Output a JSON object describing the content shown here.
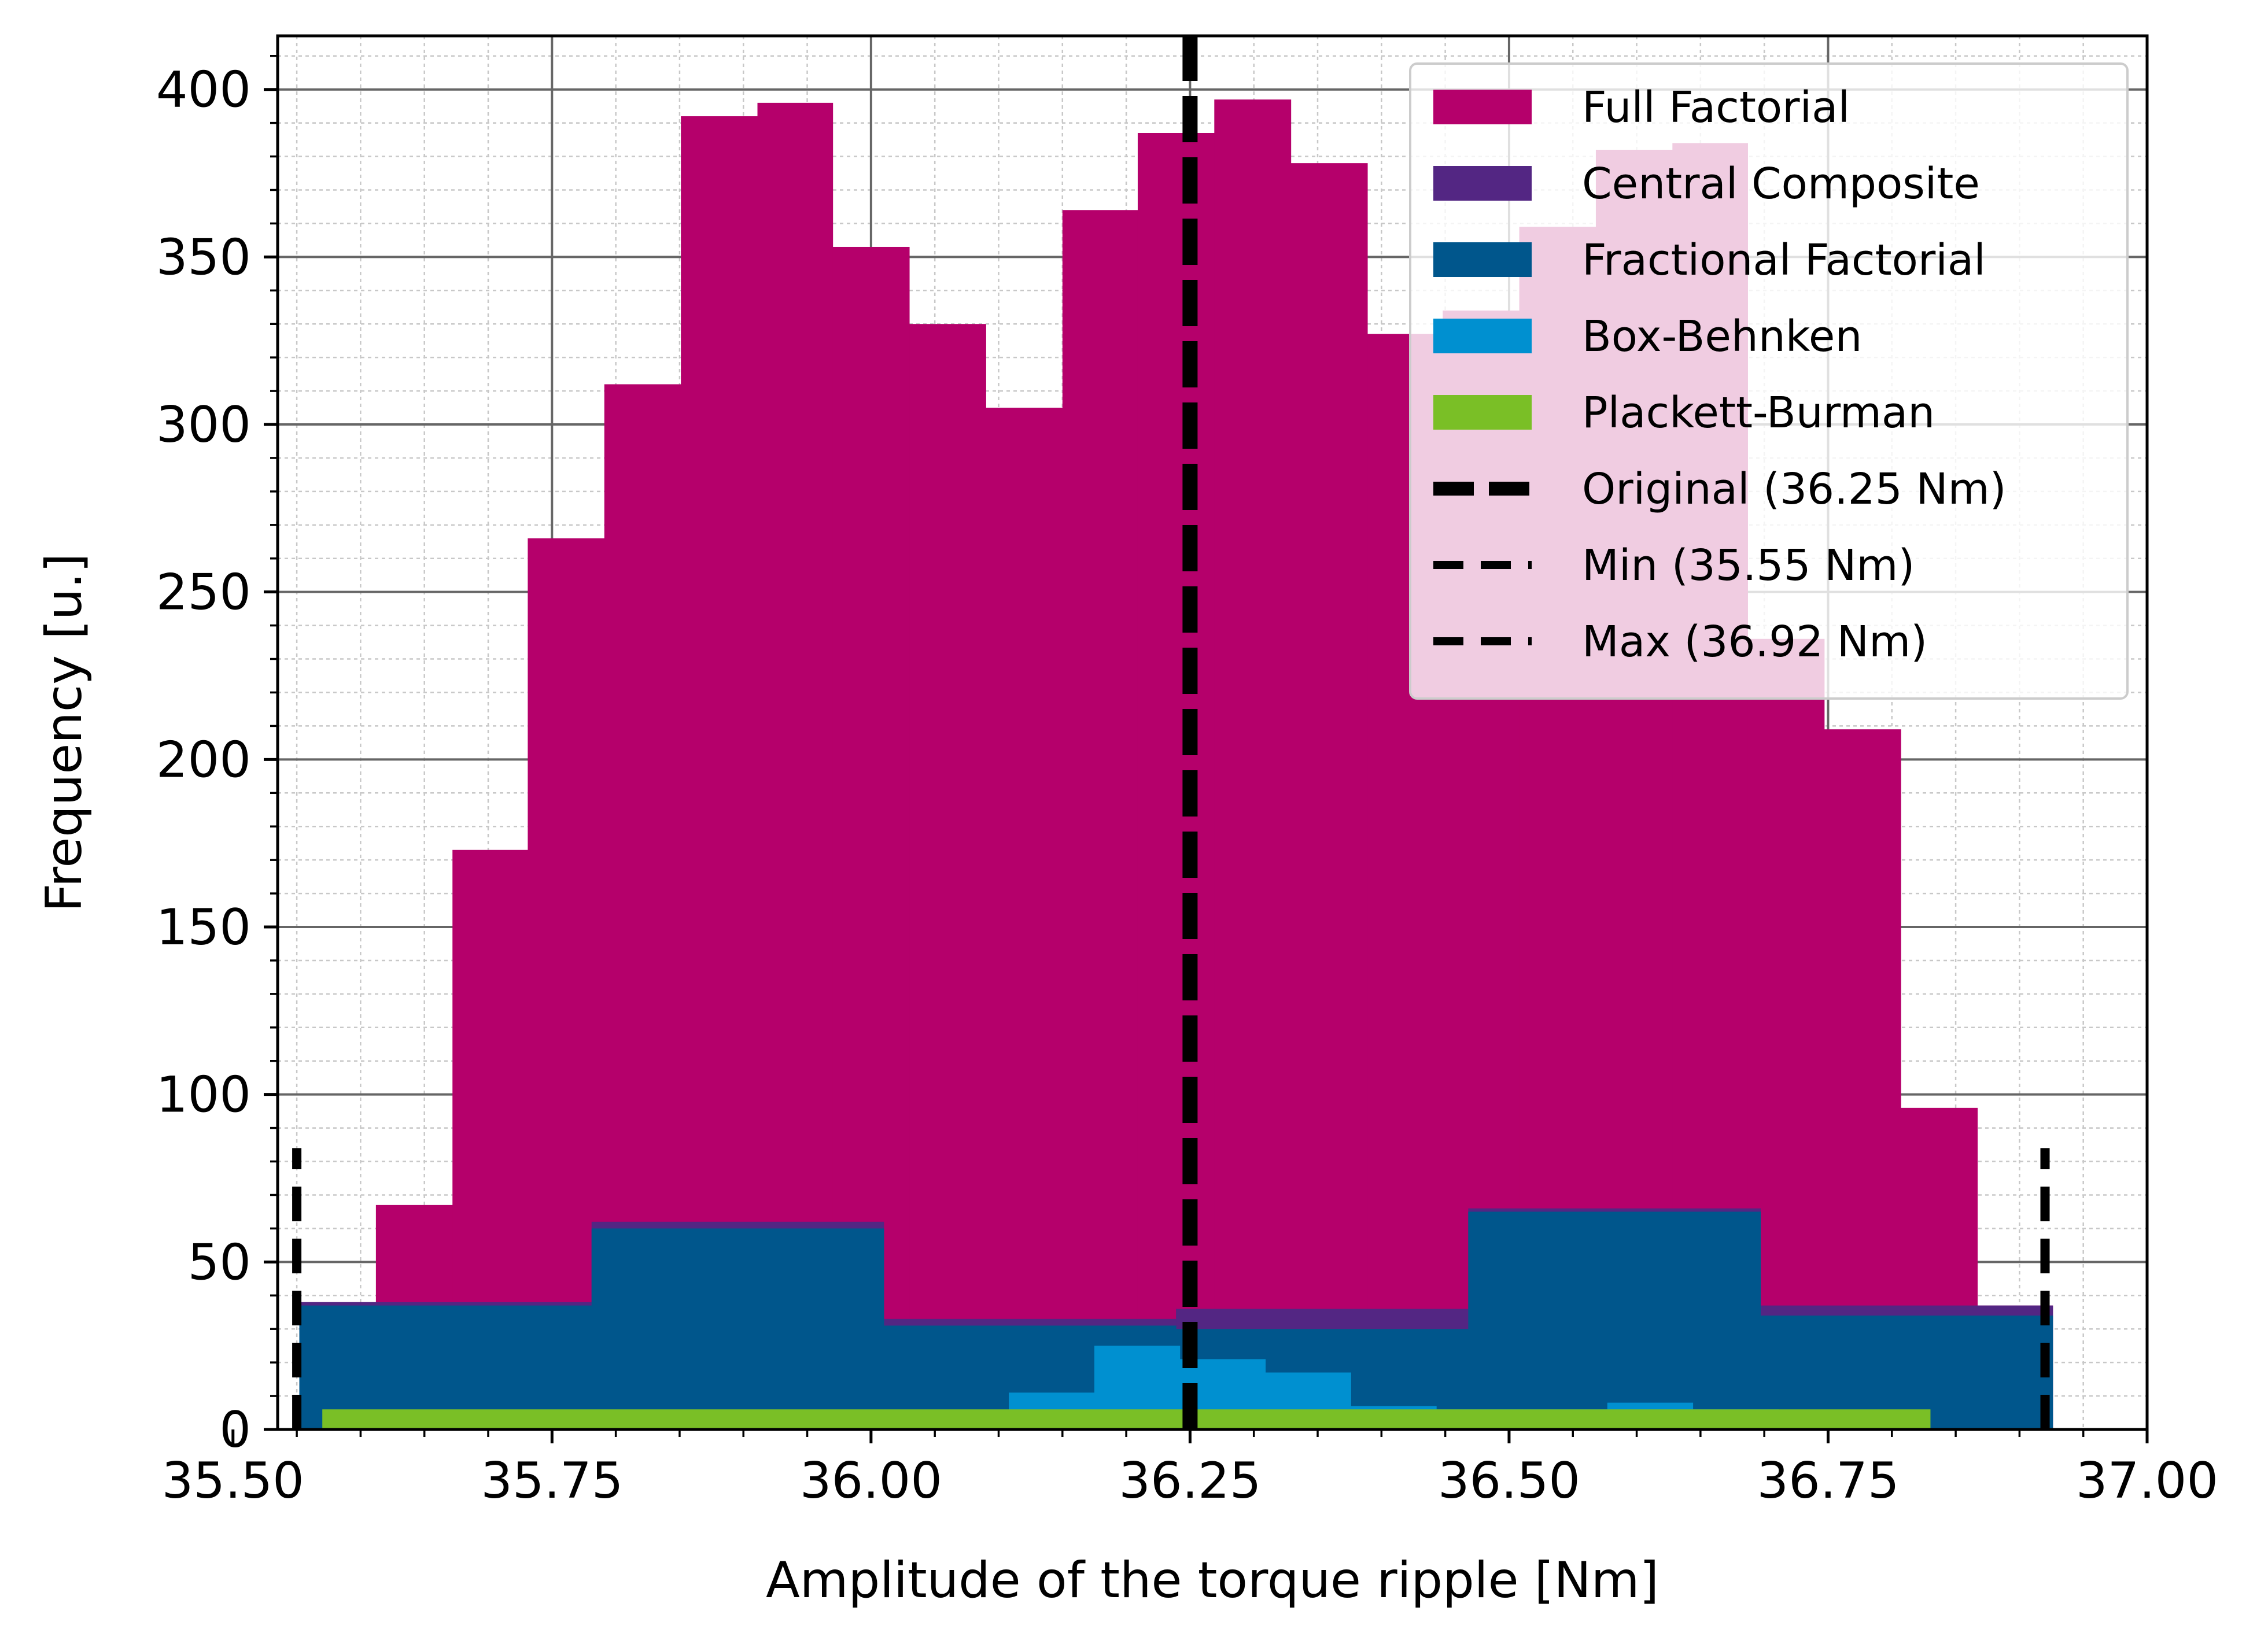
{
  "chart_data": {
    "type": "bar",
    "xlabel": "Amplitude of the torque ripple [Nm]",
    "ylabel": "Frequency [u.]",
    "xlim": [
      35.535,
      37.0
    ],
    "ylim": [
      0,
      416
    ],
    "xticks": [
      35.5,
      35.75,
      36.0,
      36.25,
      36.5,
      36.75,
      37.0
    ],
    "xtick_labels": [
      "35.50",
      "35.75",
      "36.00",
      "36.25",
      "36.50",
      "36.75",
      "37.00"
    ],
    "yticks": [
      0,
      50,
      100,
      150,
      200,
      250,
      300,
      350,
      400
    ],
    "ytick_labels": [
      "0",
      "50",
      "100",
      "150",
      "200",
      "250",
      "300",
      "350",
      "400"
    ],
    "grid": true,
    "legend_position": "top-right",
    "series": [
      {
        "name": "Full Factorial",
        "color": "#b5006b",
        "bins": [
          {
            "x0": 35.552,
            "x1": 35.612,
            "y": 38
          },
          {
            "x0": 35.612,
            "x1": 35.672,
            "y": 67
          },
          {
            "x0": 35.672,
            "x1": 35.731,
            "y": 173
          },
          {
            "x0": 35.731,
            "x1": 35.791,
            "y": 266
          },
          {
            "x0": 35.791,
            "x1": 35.851,
            "y": 312
          },
          {
            "x0": 35.851,
            "x1": 35.911,
            "y": 392
          },
          {
            "x0": 35.911,
            "x1": 35.97,
            "y": 396
          },
          {
            "x0": 35.97,
            "x1": 36.03,
            "y": 353
          },
          {
            "x0": 36.03,
            "x1": 36.09,
            "y": 330
          },
          {
            "x0": 36.09,
            "x1": 36.15,
            "y": 305
          },
          {
            "x0": 36.15,
            "x1": 36.209,
            "y": 364
          },
          {
            "x0": 36.209,
            "x1": 36.269,
            "y": 387
          },
          {
            "x0": 36.269,
            "x1": 36.329,
            "y": 397
          },
          {
            "x0": 36.329,
            "x1": 36.389,
            "y": 378
          },
          {
            "x0": 36.389,
            "x1": 36.448,
            "y": 327
          },
          {
            "x0": 36.448,
            "x1": 36.508,
            "y": 334
          },
          {
            "x0": 36.508,
            "x1": 36.568,
            "y": 359
          },
          {
            "x0": 36.568,
            "x1": 36.628,
            "y": 382
          },
          {
            "x0": 36.628,
            "x1": 36.687,
            "y": 384
          },
          {
            "x0": 36.687,
            "x1": 36.747,
            "y": 236
          },
          {
            "x0": 36.747,
            "x1": 36.807,
            "y": 209
          },
          {
            "x0": 36.807,
            "x1": 36.867,
            "y": 96
          },
          {
            "x0": 36.867,
            "x1": 36.926,
            "y": 37
          }
        ]
      },
      {
        "name": "Central Composite",
        "color": "#532683",
        "bins": [
          {
            "x0": 35.552,
            "x1": 35.781,
            "y": 38
          },
          {
            "x0": 35.781,
            "x1": 36.01,
            "y": 62
          },
          {
            "x0": 36.01,
            "x1": 36.239,
            "y": 33
          },
          {
            "x0": 36.239,
            "x1": 36.468,
            "y": 36
          },
          {
            "x0": 36.468,
            "x1": 36.697,
            "y": 66
          },
          {
            "x0": 36.697,
            "x1": 36.926,
            "y": 37
          }
        ]
      },
      {
        "name": "Fractional Factorial",
        "color": "#00568c",
        "bins": [
          {
            "x0": 35.552,
            "x1": 35.781,
            "y": 37
          },
          {
            "x0": 35.781,
            "x1": 36.01,
            "y": 60
          },
          {
            "x0": 36.01,
            "x1": 36.239,
            "y": 31
          },
          {
            "x0": 36.239,
            "x1": 36.468,
            "y": 30
          },
          {
            "x0": 36.468,
            "x1": 36.697,
            "y": 65
          },
          {
            "x0": 36.697,
            "x1": 36.926,
            "y": 34
          }
        ]
      },
      {
        "name": "Box-Behnken",
        "color": "#0090d0",
        "bins": [
          {
            "x0": 36.108,
            "x1": 36.175,
            "y": 11
          },
          {
            "x0": 36.175,
            "x1": 36.242,
            "y": 25
          },
          {
            "x0": 36.242,
            "x1": 36.309,
            "y": 21
          },
          {
            "x0": 36.309,
            "x1": 36.376,
            "y": 17
          },
          {
            "x0": 36.376,
            "x1": 36.443,
            "y": 7
          },
          {
            "x0": 36.443,
            "x1": 36.51,
            "y": 6
          },
          {
            "x0": 36.51,
            "x1": 36.577,
            "y": 6
          },
          {
            "x0": 36.577,
            "x1": 36.644,
            "y": 8
          },
          {
            "x0": 36.644,
            "x1": 36.711,
            "y": 6
          }
        ]
      },
      {
        "name": "Plackett-Burman",
        "color": "#7abf26",
        "bins": [
          {
            "x0": 35.57,
            "x1": 36.83,
            "y": 6
          }
        ]
      }
    ],
    "vlines": [
      {
        "name": "Original (36.25 Nm)",
        "x": 36.25,
        "color": "#000000",
        "style": "dashed-thick"
      },
      {
        "name": "Min (35.55 Nm)",
        "x": 35.55,
        "color": "#000000",
        "style": "dashed",
        "ymax": 84
      },
      {
        "name": "Max (36.92 Nm)",
        "x": 36.92,
        "color": "#000000",
        "style": "dashed",
        "ymax": 84
      }
    ]
  }
}
